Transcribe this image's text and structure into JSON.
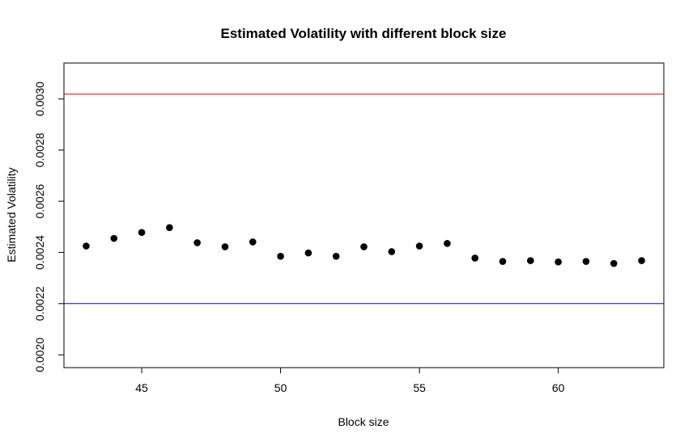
{
  "chart_data": {
    "type": "scatter",
    "title": "Estimated Volatility with different block size",
    "xlabel": "Block size",
    "ylabel": "Estimated Volatility",
    "xlim": [
      42.2,
      63.8
    ],
    "ylim": [
      0.00195,
      0.00314
    ],
    "xticks": [
      45,
      50,
      55,
      60
    ],
    "xtick_labels": [
      "45",
      "50",
      "55",
      "60"
    ],
    "yticks": [
      0.002,
      0.0022,
      0.0024,
      0.0026,
      0.0028,
      0.003
    ],
    "ytick_labels": [
      "0.0020",
      "0.0022",
      "0.0024",
      "0.0026",
      "0.0028",
      "0.0030"
    ],
    "x": [
      43,
      44,
      45,
      46,
      47,
      48,
      49,
      50,
      51,
      52,
      53,
      54,
      55,
      56,
      57,
      58,
      59,
      60,
      61,
      62,
      63
    ],
    "y": [
      0.002425,
      0.002455,
      0.002478,
      0.002497,
      0.002438,
      0.002422,
      0.002441,
      0.002385,
      0.002398,
      0.002385,
      0.002422,
      0.002403,
      0.002425,
      0.002435,
      0.002378,
      0.002365,
      0.002368,
      0.002363,
      0.002365,
      0.002357,
      0.002368
    ],
    "hlines": [
      {
        "name": "upper-reference",
        "y": 0.003019,
        "color": "#ff0000"
      },
      {
        "name": "lower-reference",
        "y": 0.0022,
        "color": "#0000ff"
      }
    ],
    "point_color": "#000000"
  }
}
